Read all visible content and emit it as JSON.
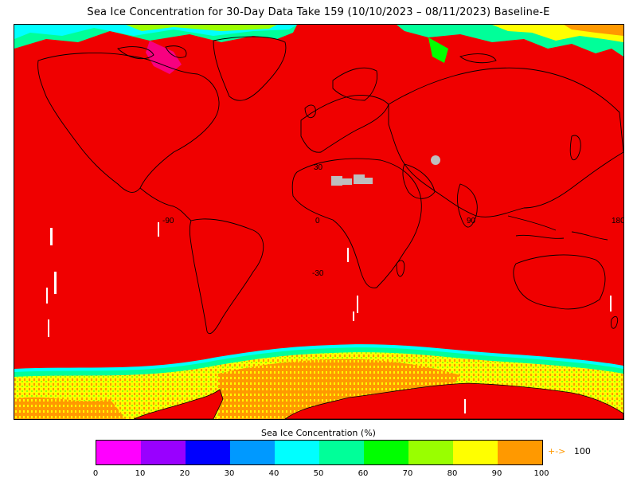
{
  "title": "Sea Ice Concentration for 30-Day Data Take 159 (10/10/2023 – 08/11/2023) Baseline-E",
  "map": {
    "grid_labels": {
      "lat_north": "30",
      "lat_equator_lon0": "0",
      "lat_south": "-30",
      "lon_west": "-90",
      "lon_east": "90",
      "lon_edge": "180"
    },
    "colors": {
      "ocean_no_ice": "#f00000",
      "land_outline": "#000000",
      "no_data": "#bebebe",
      "missing": "#ffffff"
    }
  },
  "colorbar": {
    "title": "Sea Ice Concentration (%)",
    "ticks": [
      "0",
      "10",
      "20",
      "30",
      "40",
      "50",
      "60",
      "70",
      "80",
      "90",
      "100"
    ],
    "colors": [
      "#ff00ff",
      "#9900ff",
      "#0000ff",
      "#0099ff",
      "#00ffff",
      "#00ff99",
      "#00ff00",
      "#99ff00",
      "#ffff00",
      "#ff9900"
    ],
    "overflow_arrow": "+->",
    "overflow_value": "100"
  }
}
